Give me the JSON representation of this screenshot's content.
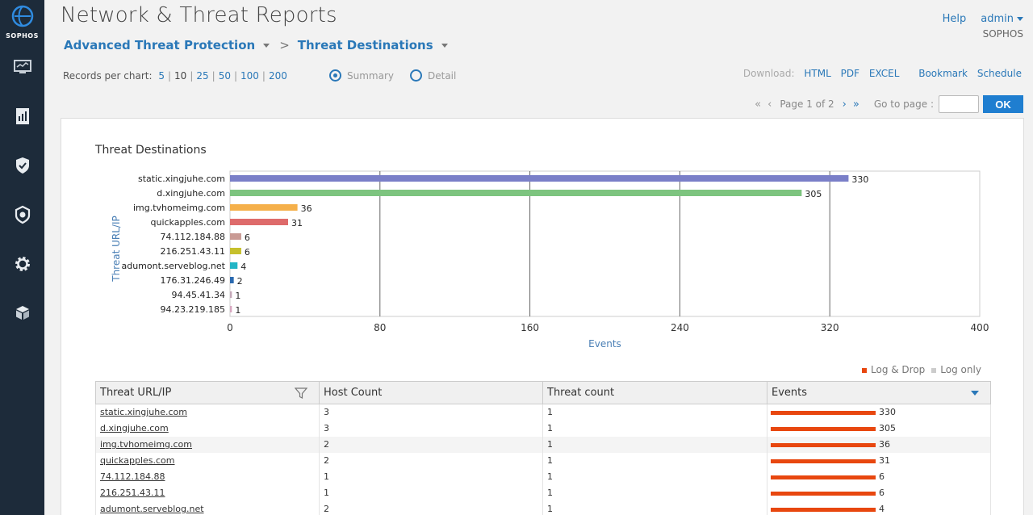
{
  "app": {
    "brand": "SOPHOS"
  },
  "sidebar": {
    "icons": [
      "monitor-icon",
      "report-icon",
      "shield-icon",
      "protect-icon",
      "gear-icon",
      "box-icon"
    ]
  },
  "header": {
    "title": "Network & Threat Reports",
    "help": "Help",
    "user": "admin",
    "org": "SOPHOS"
  },
  "breadcrumb": {
    "level1": "Advanced Threat Protection",
    "level2": "Threat Destinations"
  },
  "records": {
    "label": "Records per chart:",
    "options": [
      "5",
      "10",
      "25",
      "50",
      "100",
      "200"
    ],
    "selected": "10"
  },
  "view": {
    "summary": "Summary",
    "detail": "Detail",
    "selected": "Summary"
  },
  "downloads": {
    "label": "Download:",
    "html": "HTML",
    "pdf": "PDF",
    "excel": "EXCEL",
    "bookmark": "Bookmark",
    "schedule": "Schedule"
  },
  "pager": {
    "first": "«",
    "prev": "‹",
    "status": "Page 1 of 2",
    "next": "›",
    "last": "»",
    "goto_label": "Go to page :",
    "ok": "OK"
  },
  "chart_data": {
    "type": "bar",
    "orientation": "horizontal",
    "title": "Threat Destinations",
    "xlabel": "Events",
    "ylabel": "Threat URL/IP",
    "xlim": [
      0,
      400
    ],
    "xticks": [
      0,
      80,
      160,
      240,
      320,
      400
    ],
    "grid": true,
    "categories": [
      "static.xingjuhe.com",
      "d.xingjuhe.com",
      "img.tvhomeimg.com",
      "quickapples.com",
      "74.112.184.88",
      "216.251.43.11",
      "adumont.serveblog.net",
      "176.31.246.49",
      "94.45.41.34",
      "94.23.219.185"
    ],
    "values": [
      330,
      305,
      36,
      31,
      6,
      6,
      4,
      2,
      1,
      1
    ],
    "colors": [
      "#7a7fc8",
      "#7dc47f",
      "#f5b04a",
      "#de6b6b",
      "#c99a94",
      "#c6c02d",
      "#22b5c6",
      "#2a6ab0",
      "#c4a8b8",
      "#d8a8c0"
    ]
  },
  "legend": {
    "log_drop": "Log & Drop",
    "log_only": "Log only",
    "log_drop_color": "#e8470f",
    "log_only_color": "#cccccc"
  },
  "table": {
    "columns": [
      "Threat URL/IP",
      "Host Count",
      "Threat count",
      "Events"
    ],
    "rows": [
      {
        "url": "static.xingjuhe.com",
        "hosts": "3",
        "threats": "1",
        "events": "330"
      },
      {
        "url": "d.xingjuhe.com",
        "hosts": "3",
        "threats": "1",
        "events": "305"
      },
      {
        "url": "img.tvhomeimg.com",
        "hosts": "2",
        "threats": "1",
        "events": "36"
      },
      {
        "url": "quickapples.com",
        "hosts": "2",
        "threats": "1",
        "events": "31"
      },
      {
        "url": "74.112.184.88",
        "hosts": "1",
        "threats": "1",
        "events": "6"
      },
      {
        "url": "216.251.43.11",
        "hosts": "1",
        "threats": "1",
        "events": "6"
      },
      {
        "url": "adumont.serveblog.net",
        "hosts": "2",
        "threats": "1",
        "events": "4"
      }
    ]
  }
}
